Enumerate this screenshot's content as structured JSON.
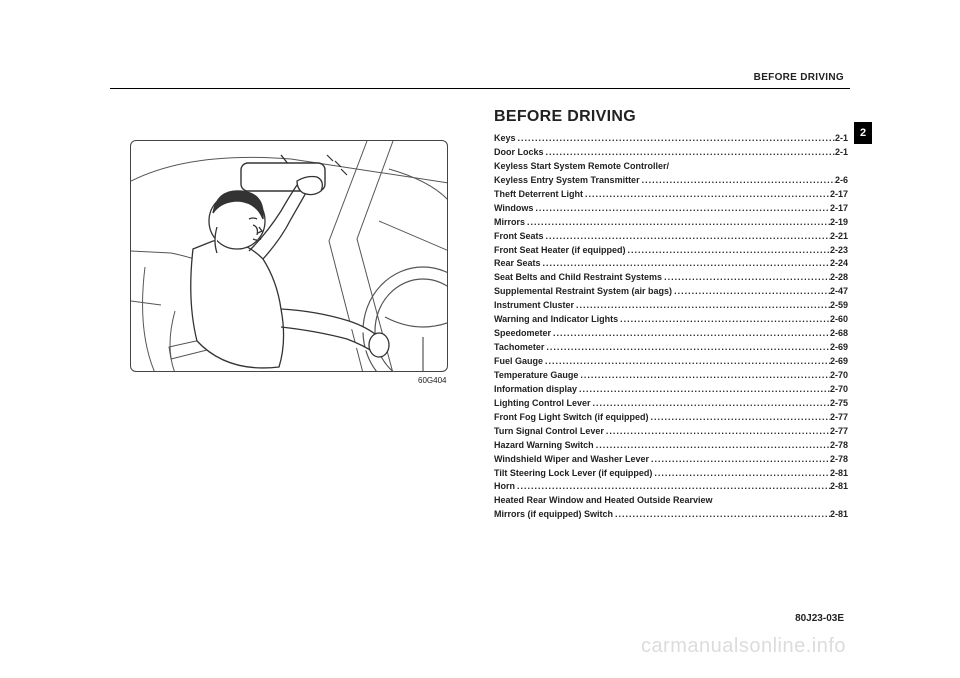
{
  "header": {
    "section": "BEFORE DRIVING"
  },
  "section_title": "BEFORE DRIVING",
  "tab": "2",
  "illustration_code": "60G404",
  "doc_code": "80J23-03E",
  "watermark": "carmanualsonline.info",
  "toc": [
    {
      "label": "Keys",
      "page": "2-1"
    },
    {
      "label": "Door Locks",
      "page": "2-1"
    },
    {
      "label": "Keyless Start System Remote Controller/",
      "page": ""
    },
    {
      "label": "Keyless Entry System Transmitter",
      "page": "2-6"
    },
    {
      "label": "Theft Deterrent Light",
      "page": "2-17"
    },
    {
      "label": "Windows",
      "page": "2-17"
    },
    {
      "label": "Mirrors",
      "page": "2-19"
    },
    {
      "label": "Front Seats",
      "page": "2-21"
    },
    {
      "label": "Front Seat Heater (if equipped)",
      "page": "2-23"
    },
    {
      "label": "Rear Seats",
      "page": "2-24"
    },
    {
      "label": "Seat Belts and Child Restraint Systems",
      "page": "2-28"
    },
    {
      "label": "Supplemental Restraint System (air bags)",
      "page": "2-47"
    },
    {
      "label": "Instrument Cluster",
      "page": "2-59"
    },
    {
      "label": "Warning and Indicator Lights",
      "page": "2-60"
    },
    {
      "label": "Speedometer",
      "page": "2-68"
    },
    {
      "label": "Tachometer",
      "page": "2-69"
    },
    {
      "label": "Fuel Gauge",
      "page": "2-69"
    },
    {
      "label": "Temperature Gauge",
      "page": "2-70"
    },
    {
      "label": "Information display",
      "page": "2-70"
    },
    {
      "label": "Lighting Control Lever",
      "page": "2-75"
    },
    {
      "label": "Front Fog Light Switch (if equipped)",
      "page": "2-77"
    },
    {
      "label": "Turn Signal Control Lever",
      "page": "2-77"
    },
    {
      "label": "Hazard Warning Switch",
      "page": "2-78"
    },
    {
      "label": "Windshield Wiper and Washer Lever",
      "page": "2-78"
    },
    {
      "label": "Tilt Steering Lock Lever (if equipped)",
      "page": "2-81"
    },
    {
      "label": "Horn",
      "page": "2-81"
    },
    {
      "label": "Heated Rear Window and Heated Outside Rearview",
      "page": ""
    },
    {
      "label": "Mirrors (if equipped) Switch",
      "page": "2-81"
    }
  ]
}
